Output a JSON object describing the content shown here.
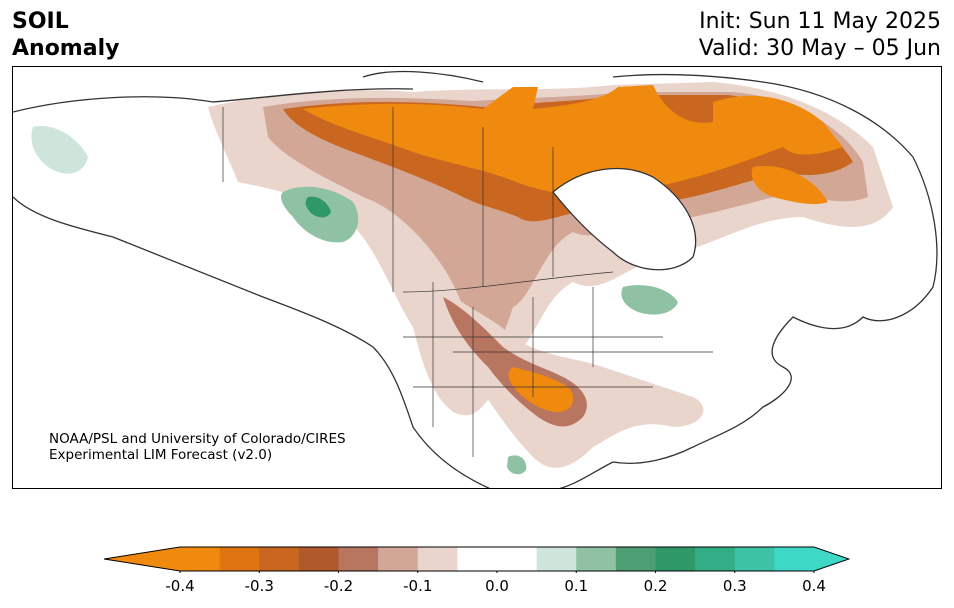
{
  "header": {
    "title_line1": "SOIL",
    "title_line2": "Anomaly",
    "init": "Init: Sun 11 May 2025",
    "valid": "Valid: 30 May – 05 Jun"
  },
  "credit": {
    "line1": "NOAA/PSL and University of Colorado/CIRES",
    "line2": "Experimental LIM Forecast (v2.0)"
  },
  "colorbar": {
    "levels": [
      -0.4,
      -0.35,
      -0.3,
      -0.25,
      -0.2,
      -0.15,
      -0.1,
      -0.05,
      0.05,
      0.1,
      0.15,
      0.2,
      0.25,
      0.3,
      0.35,
      0.4
    ],
    "colors": [
      "#f08a0e",
      "#de7412",
      "#c9661f",
      "#b05a2b",
      "#b87560",
      "#d3a796",
      "#ead5cd",
      "#ffffff",
      "#cde5da",
      "#8fc2a4",
      "#4d9e72",
      "#2e9868",
      "#33ad85",
      "#3cc2a4",
      "#3dd8c6"
    ],
    "under_color": "#f08a0e",
    "over_color": "#3dd8c6",
    "ticks": [
      "-0.4",
      "-0.3",
      "-0.2",
      "-0.1",
      "0.0",
      "0.1",
      "0.2",
      "0.3",
      "0.4"
    ]
  }
}
